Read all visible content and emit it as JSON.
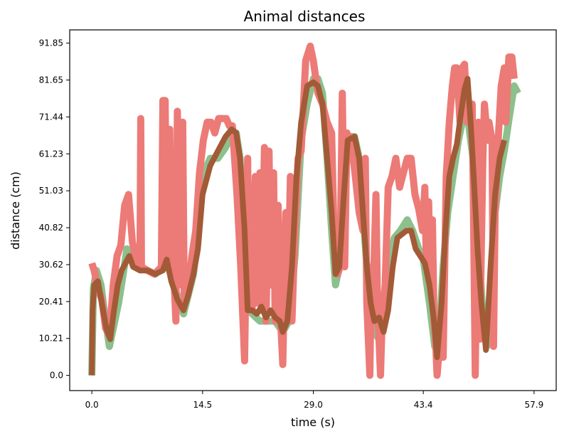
{
  "chart_data": {
    "type": "line",
    "title": "Animal distances",
    "xlabel": "time (s)",
    "ylabel": "distance (cm)",
    "xlim": [
      -2.9,
      60.8
    ],
    "ylim": [
      -4.2,
      95.5
    ],
    "x_ticks": [
      "0.0",
      "14.5",
      "29.0",
      "43.4",
      "57.9"
    ],
    "x_tick_values": [
      0.0,
      14.5,
      29.0,
      43.4,
      57.9
    ],
    "y_ticks": [
      "0.0",
      "10.21",
      "20.41",
      "30.62",
      "40.82",
      "51.03",
      "61.23",
      "71.44",
      "81.65",
      "91.85"
    ],
    "y_tick_values": [
      0.0,
      10.21,
      20.41,
      30.62,
      40.82,
      51.03,
      61.23,
      71.44,
      81.65,
      91.85
    ],
    "grid": false,
    "series": [
      {
        "name": "green",
        "color": "#8cc08c",
        "width": 10,
        "points": [
          [
            0,
            0
          ],
          [
            0.2,
            24
          ],
          [
            0.6,
            29
          ],
          [
            1.2,
            25
          ],
          [
            1.8,
            15
          ],
          [
            2.3,
            8
          ],
          [
            2.9,
            14
          ],
          [
            3.5,
            20
          ],
          [
            4.1,
            28
          ],
          [
            4.6,
            35
          ],
          [
            5.3,
            33
          ],
          [
            6.3,
            30
          ],
          [
            7.3,
            29
          ],
          [
            8.3,
            28
          ],
          [
            9.3,
            30
          ],
          [
            9.8,
            31
          ],
          [
            10.5,
            27
          ],
          [
            11.2,
            22
          ],
          [
            12.0,
            17
          ],
          [
            12.6,
            22
          ],
          [
            13.3,
            28
          ],
          [
            13.9,
            40
          ],
          [
            14.5,
            55
          ],
          [
            15.5,
            60
          ],
          [
            16.5,
            60
          ],
          [
            17.5,
            63
          ],
          [
            18.4,
            67
          ],
          [
            18.9,
            67
          ],
          [
            19.4,
            60
          ],
          [
            19.9,
            40
          ],
          [
            20.4,
            25
          ],
          [
            21.0,
            17
          ],
          [
            22.0,
            15
          ],
          [
            23.0,
            15
          ],
          [
            24.0,
            15
          ],
          [
            25.0,
            12
          ],
          [
            25.8,
            15
          ],
          [
            26.6,
            33
          ],
          [
            27.4,
            65
          ],
          [
            28.2,
            75
          ],
          [
            29.0,
            82
          ],
          [
            29.6,
            82
          ],
          [
            30.2,
            78
          ],
          [
            30.8,
            60
          ],
          [
            31.4,
            40
          ],
          [
            31.9,
            25
          ],
          [
            32.4,
            30
          ],
          [
            33.0,
            50
          ],
          [
            33.5,
            66
          ],
          [
            34.4,
            66
          ],
          [
            35.0,
            60
          ],
          [
            35.5,
            45
          ],
          [
            36.0,
            30
          ],
          [
            36.5,
            20
          ],
          [
            37.0,
            12
          ],
          [
            37.6,
            10
          ],
          [
            38.4,
            20
          ],
          [
            39.0,
            32
          ],
          [
            39.6,
            38
          ],
          [
            40.4,
            40
          ],
          [
            41.3,
            43
          ],
          [
            42.0,
            40
          ],
          [
            42.8,
            35
          ],
          [
            43.4,
            32
          ],
          [
            44.2,
            20
          ],
          [
            44.9,
            8
          ],
          [
            45.5,
            12
          ],
          [
            46.0,
            30
          ],
          [
            46.6,
            45
          ],
          [
            47.3,
            55
          ],
          [
            48.0,
            65
          ],
          [
            48.7,
            72
          ],
          [
            49.3,
            70
          ],
          [
            49.9,
            60
          ],
          [
            50.5,
            40
          ],
          [
            51.1,
            20
          ],
          [
            51.7,
            8
          ],
          [
            52.2,
            25
          ],
          [
            52.8,
            45
          ],
          [
            53.4,
            55
          ],
          [
            54.0,
            62
          ],
          [
            54.7,
            72
          ],
          [
            55.3,
            80
          ],
          [
            55.8,
            78
          ]
        ]
      },
      {
        "name": "red",
        "color": "#ec7a76",
        "width": 10,
        "points": [
          [
            0,
            31
          ],
          [
            0.3,
            29
          ],
          [
            0.8,
            24
          ],
          [
            1.3,
            21
          ],
          [
            1.8,
            13
          ],
          [
            2.3,
            11
          ],
          [
            2.8,
            25
          ],
          [
            3.3,
            33
          ],
          [
            3.8,
            36
          ],
          [
            4.3,
            47
          ],
          [
            4.8,
            50
          ],
          [
            5.3,
            37
          ],
          [
            5.9,
            30
          ],
          [
            6.3,
            30
          ],
          [
            6.4,
            71
          ],
          [
            6.5,
            30
          ],
          [
            7.3,
            29
          ],
          [
            8.2,
            28
          ],
          [
            9.1,
            30
          ],
          [
            9.3,
            76
          ],
          [
            9.6,
            76
          ],
          [
            9.8,
            30
          ],
          [
            10.2,
            68
          ],
          [
            10.4,
            30
          ],
          [
            10.8,
            25
          ],
          [
            11.0,
            15
          ],
          [
            11.2,
            73
          ],
          [
            11.4,
            25
          ],
          [
            11.9,
            70
          ],
          [
            12.1,
            20
          ],
          [
            12.6,
            23
          ],
          [
            13.1,
            33
          ],
          [
            13.6,
            40
          ],
          [
            14.1,
            56
          ],
          [
            14.6,
            65
          ],
          [
            15.1,
            70
          ],
          [
            15.6,
            70
          ],
          [
            16.1,
            67
          ],
          [
            16.6,
            71
          ],
          [
            17.1,
            71
          ],
          [
            17.6,
            71
          ],
          [
            18.0,
            69
          ],
          [
            18.4,
            69
          ],
          [
            19.0,
            50
          ],
          [
            19.5,
            30
          ],
          [
            20.0,
            4
          ],
          [
            20.4,
            60
          ],
          [
            20.6,
            20
          ],
          [
            21.0,
            18
          ],
          [
            21.4,
            55
          ],
          [
            21.6,
            20
          ],
          [
            22.0,
            56
          ],
          [
            22.2,
            18
          ],
          [
            22.6,
            63
          ],
          [
            22.8,
            15
          ],
          [
            23.2,
            62
          ],
          [
            23.4,
            25
          ],
          [
            23.8,
            56
          ],
          [
            24.0,
            15
          ],
          [
            24.4,
            47
          ],
          [
            24.6,
            20
          ],
          [
            25.0,
            3
          ],
          [
            25.4,
            45
          ],
          [
            25.6,
            15
          ],
          [
            26.0,
            55
          ],
          [
            26.2,
            15
          ],
          [
            26.6,
            40
          ],
          [
            27.0,
            60
          ],
          [
            27.4,
            62
          ],
          [
            28.0,
            87
          ],
          [
            28.6,
            91
          ],
          [
            29.0,
            87
          ],
          [
            29.6,
            78
          ],
          [
            30.2,
            75
          ],
          [
            30.8,
            70
          ],
          [
            31.4,
            67
          ],
          [
            31.7,
            40
          ],
          [
            32.0,
            30
          ],
          [
            32.2,
            28
          ],
          [
            32.5,
            30
          ],
          [
            32.8,
            78
          ],
          [
            33.1,
            30
          ],
          [
            33.4,
            67
          ],
          [
            34.0,
            64
          ],
          [
            34.5,
            55
          ],
          [
            35.0,
            45
          ],
          [
            35.5,
            40
          ],
          [
            35.8,
            60
          ],
          [
            36.0,
            20
          ],
          [
            36.4,
            0
          ],
          [
            36.6,
            30
          ],
          [
            36.8,
            20
          ],
          [
            37.2,
            50
          ],
          [
            37.4,
            20
          ],
          [
            37.8,
            0
          ],
          [
            38.0,
            15
          ],
          [
            38.4,
            25
          ],
          [
            38.8,
            52
          ],
          [
            39.3,
            55
          ],
          [
            39.8,
            60
          ],
          [
            40.3,
            52
          ],
          [
            40.8,
            56
          ],
          [
            41.3,
            60
          ],
          [
            41.8,
            60
          ],
          [
            42.3,
            50
          ],
          [
            42.8,
            46
          ],
          [
            43.3,
            40
          ],
          [
            43.6,
            52
          ],
          [
            43.8,
            30
          ],
          [
            44.1,
            48
          ],
          [
            44.3,
            25
          ],
          [
            44.6,
            43
          ],
          [
            44.8,
            15
          ],
          [
            45.0,
            10
          ],
          [
            45.2,
            0
          ],
          [
            45.6,
            10
          ],
          [
            46.0,
            5
          ],
          [
            46.4,
            55
          ],
          [
            46.8,
            70
          ],
          [
            47.2,
            80
          ],
          [
            47.5,
            85
          ],
          [
            47.8,
            85
          ],
          [
            48.2,
            70
          ],
          [
            48.5,
            85
          ],
          [
            48.8,
            86
          ],
          [
            49.2,
            70
          ],
          [
            49.5,
            75
          ],
          [
            49.8,
            75
          ],
          [
            50.0,
            40
          ],
          [
            50.2,
            0
          ],
          [
            50.6,
            70
          ],
          [
            50.8,
            10
          ],
          [
            51.2,
            60
          ],
          [
            51.4,
            75
          ],
          [
            51.8,
            65
          ],
          [
            52.0,
            70
          ],
          [
            52.4,
            65
          ],
          [
            52.6,
            8
          ],
          [
            52.8,
            45
          ],
          [
            53.2,
            65
          ],
          [
            53.6,
            80
          ],
          [
            54.0,
            85
          ],
          [
            54.2,
            70
          ],
          [
            54.6,
            88
          ],
          [
            55.0,
            88
          ],
          [
            55.3,
            82
          ]
        ]
      },
      {
        "name": "brown",
        "color": "#a35a37",
        "width": 8,
        "points": [
          [
            0,
            0
          ],
          [
            0.1,
            18
          ],
          [
            0.3,
            25
          ],
          [
            0.8,
            26
          ],
          [
            1.3,
            20
          ],
          [
            1.9,
            13
          ],
          [
            2.4,
            10
          ],
          [
            2.9,
            18
          ],
          [
            3.4,
            25
          ],
          [
            3.9,
            29
          ],
          [
            4.4,
            31
          ],
          [
            4.9,
            33
          ],
          [
            5.4,
            30
          ],
          [
            6.3,
            29
          ],
          [
            7.3,
            29
          ],
          [
            8.3,
            28
          ],
          [
            9.3,
            29
          ],
          [
            9.8,
            32
          ],
          [
            10.4,
            26
          ],
          [
            11.2,
            21
          ],
          [
            12.0,
            18
          ],
          [
            12.6,
            22
          ],
          [
            13.3,
            28
          ],
          [
            13.9,
            35
          ],
          [
            14.5,
            50
          ],
          [
            15.5,
            58
          ],
          [
            16.5,
            62
          ],
          [
            17.5,
            66
          ],
          [
            18.3,
            68
          ],
          [
            18.9,
            67
          ],
          [
            19.4,
            60
          ],
          [
            20.0,
            40
          ],
          [
            20.4,
            18
          ],
          [
            21.0,
            18
          ],
          [
            21.6,
            17
          ],
          [
            22.2,
            19
          ],
          [
            22.8,
            16
          ],
          [
            23.4,
            18
          ],
          [
            24.0,
            16
          ],
          [
            24.6,
            15
          ],
          [
            25.0,
            12
          ],
          [
            25.6,
            15
          ],
          [
            26.2,
            30
          ],
          [
            26.8,
            55
          ],
          [
            27.4,
            70
          ],
          [
            28.2,
            80
          ],
          [
            29.0,
            81
          ],
          [
            29.6,
            80
          ],
          [
            30.2,
            75
          ],
          [
            30.8,
            60
          ],
          [
            31.4,
            45
          ],
          [
            31.9,
            28
          ],
          [
            32.4,
            30
          ],
          [
            33.0,
            50
          ],
          [
            33.5,
            65
          ],
          [
            34.4,
            66
          ],
          [
            35.0,
            60
          ],
          [
            35.5,
            45
          ],
          [
            36.0,
            30
          ],
          [
            36.5,
            20
          ],
          [
            37.0,
            15
          ],
          [
            37.6,
            16
          ],
          [
            38.2,
            12
          ],
          [
            38.8,
            18
          ],
          [
            39.4,
            30
          ],
          [
            40.0,
            38
          ],
          [
            40.6,
            39
          ],
          [
            41.2,
            40
          ],
          [
            41.8,
            40
          ],
          [
            42.4,
            35
          ],
          [
            43.0,
            33
          ],
          [
            43.6,
            31
          ],
          [
            44.2,
            25
          ],
          [
            44.8,
            15
          ],
          [
            45.2,
            5
          ],
          [
            45.8,
            20
          ],
          [
            46.3,
            40
          ],
          [
            46.8,
            55
          ],
          [
            47.3,
            60
          ],
          [
            47.8,
            64
          ],
          [
            48.3,
            72
          ],
          [
            48.8,
            79
          ],
          [
            49.2,
            82
          ],
          [
            49.6,
            70
          ],
          [
            50.0,
            55
          ],
          [
            50.5,
            35
          ],
          [
            51.0,
            20
          ],
          [
            51.6,
            7
          ],
          [
            52.2,
            30
          ],
          [
            52.8,
            50
          ],
          [
            53.4,
            60
          ],
          [
            54.0,
            65
          ]
        ]
      }
    ]
  }
}
